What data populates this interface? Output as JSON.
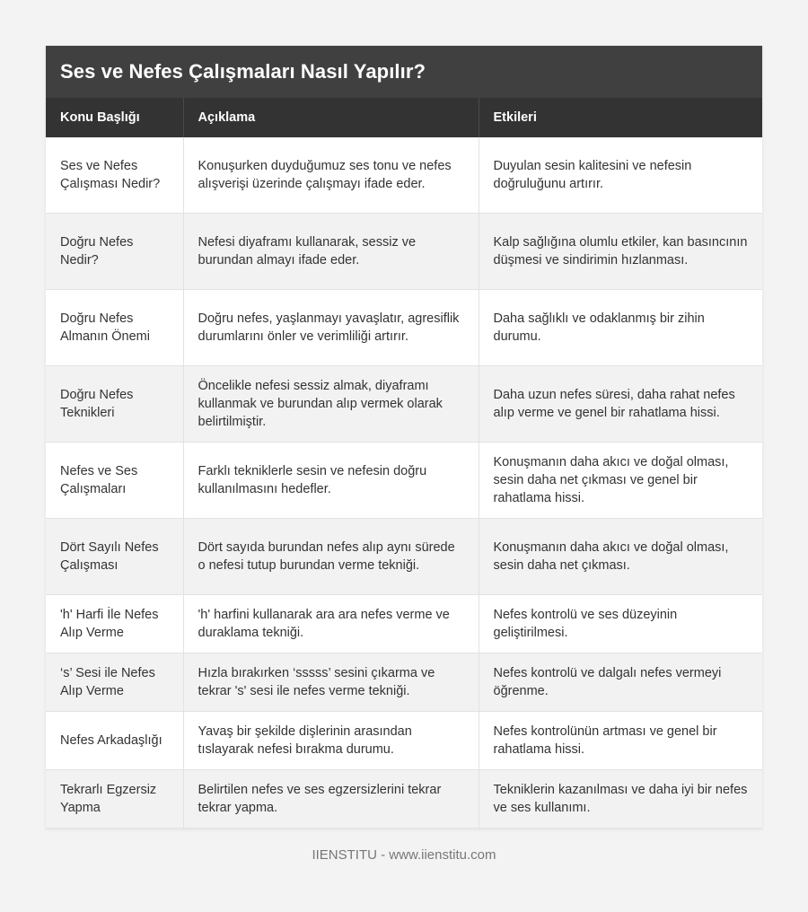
{
  "title": "Ses ve Nefes Çalışmaları Nasıl Yapılır?",
  "headers": [
    "Konu Başlığı",
    "Açıklama",
    "Etkileri"
  ],
  "rows": [
    [
      "Ses ve Nefes Çalışması Nedir?",
      "Konuşurken duyduğumuz ses tonu ve nefes alışverişi üzerinde çalışmayı ifade eder.",
      "Duyulan sesin kalitesini ve nefesin doğruluğunu artırır."
    ],
    [
      "Doğru Nefes Nedir?",
      "Nefesi diyaframı kullanarak, sessiz ve burundan almayı ifade eder.",
      "Kalp sağlığına olumlu etkiler, kan basıncının düşmesi ve sindirimin hızlanması."
    ],
    [
      "Doğru Nefes Almanın Önemi",
      "Doğru nefes, yaşlanmayı yavaşlatır, agresiflik durumlarını önler ve verimliliği artırır.",
      "Daha sağlıklı ve odaklanmış bir zihin durumu."
    ],
    [
      "Doğru Nefes Teknikleri",
      "Öncelikle nefesi sessiz almak, diyaframı kullanmak ve burundan alıp vermek olarak belirtilmiştir.",
      "Daha uzun nefes süresi, daha rahat nefes alıp verme ve genel bir rahatlama hissi."
    ],
    [
      "Nefes ve Ses Çalışmaları",
      "Farklı tekniklerle sesin ve nefesin doğru kullanılmasını hedefler.",
      "Konuşmanın daha akıcı ve doğal olması, sesin daha net çıkması ve genel bir rahatlama hissi."
    ],
    [
      "Dört Sayılı Nefes Çalışması",
      "Dört sayıda burundan nefes alıp aynı sürede o nefesi tutup burundan verme tekniği.",
      "Konuşmanın daha akıcı ve doğal olması, sesin daha net çıkması."
    ],
    [
      "'h' Harfi İle Nefes Alıp Verme",
      "'h' harfini kullanarak ara ara nefes verme ve duraklama tekniği.",
      "Nefes kontrolü ve ses düzeyinin geliştirilmesi."
    ],
    [
      "‘s’ Sesi ile Nefes Alıp Verme",
      "Hızla bırakırken ‘sssss’ sesini çıkarma ve tekrar 's' sesi ile nefes verme tekniği.",
      "Nefes kontrolü ve dalgalı nefes vermeyi öğrenme."
    ],
    [
      "Nefes Arkadaşlığı",
      "Yavaş bir şekilde dişlerinin arasından tıslayarak nefesi bırakma durumu.",
      "Nefes kontrolünün artması ve genel bir rahatlama hissi."
    ],
    [
      "Tekrarlı Egzersiz Yapma",
      "Belirtilen nefes ve ses egzersizlerini tekrar tekrar yapma.",
      "Tekniklerin kazanılması ve daha iyi bir nefes ve ses kullanımı."
    ]
  ],
  "footer": "IIENSTITU - www.iienstitu.com",
  "colors": {
    "title_bg": "#404040",
    "header_bg": "#333333",
    "row_alt_bg": "#f2f2f2",
    "page_bg": "#f3f3f3"
  }
}
